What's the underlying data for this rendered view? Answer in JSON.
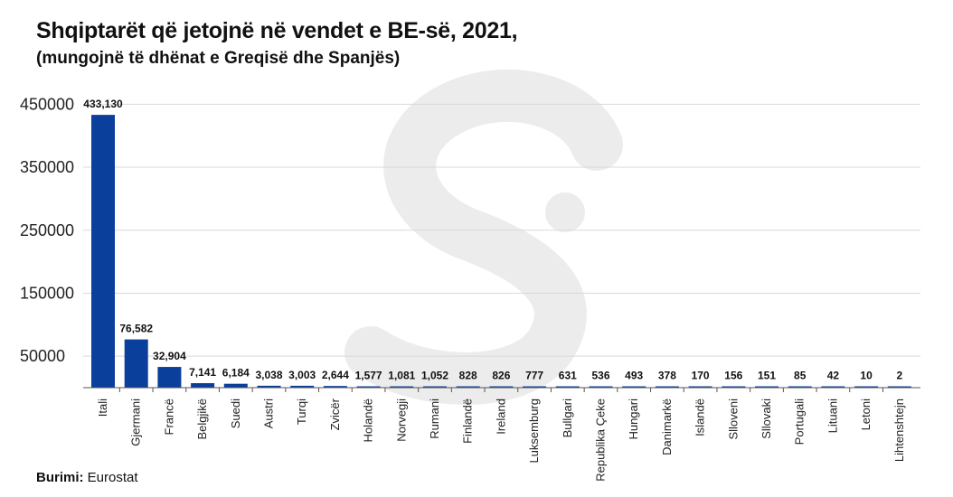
{
  "title": "Shqiptarët që jetojnë në vendet e BE-së, 2021,",
  "subtitle": "(mungojnë të dhënat e Greqisë dhe Spanjës)",
  "source_label": "Burimi:",
  "source_value": "Eurostat",
  "colors": {
    "bar": "#0a3f9c",
    "grid": "#d9d9d9",
    "axis": "#555555",
    "watermark": "#ececec"
  },
  "chart_data": {
    "type": "bar",
    "title": "Shqiptarët që jetojnë në vendet e BE-së, 2021,",
    "subtitle": "(mungojnë të dhënat e Greqisë dhe Spanjës)",
    "xlabel": "",
    "ylabel": "",
    "ylim": [
      0,
      450000
    ],
    "yticks": [
      50000,
      150000,
      250000,
      350000,
      450000
    ],
    "ytick_labels": [
      "50000",
      "150000",
      "250000",
      "350000",
      "450000"
    ],
    "grid": true,
    "categories": [
      "Itali",
      "Gjermani",
      "Francë",
      "Belgjikë",
      "Suedi",
      "Austri",
      "Turqi",
      "Zvicër",
      "Holandë",
      "Norvegji",
      "Rumani",
      "Finlandë",
      "Ireland",
      "Luksemburg",
      "Bullgari",
      "Republika Çeke",
      "Hungari",
      "Danimarkë",
      "Islandë",
      "Slloveni",
      "Sllovaki",
      "Portugali",
      "Lituani",
      "Letoni",
      "Lihtenshtejn"
    ],
    "values": [
      433130,
      76582,
      32904,
      7141,
      6184,
      3038,
      3003,
      2644,
      1577,
      1081,
      1052,
      828,
      826,
      777,
      631,
      536,
      493,
      378,
      170,
      156,
      151,
      85,
      42,
      10,
      2
    ],
    "value_labels": [
      "433,130",
      "76,582",
      "32,904",
      "7,141",
      "6,184",
      "3,038",
      "3,003",
      "2,644",
      "1,577",
      "1,081",
      "1,052",
      "828",
      "826",
      "777",
      "631",
      "536",
      "493",
      "378",
      "170",
      "156",
      "151",
      "85",
      "42",
      "10",
      "2"
    ]
  }
}
